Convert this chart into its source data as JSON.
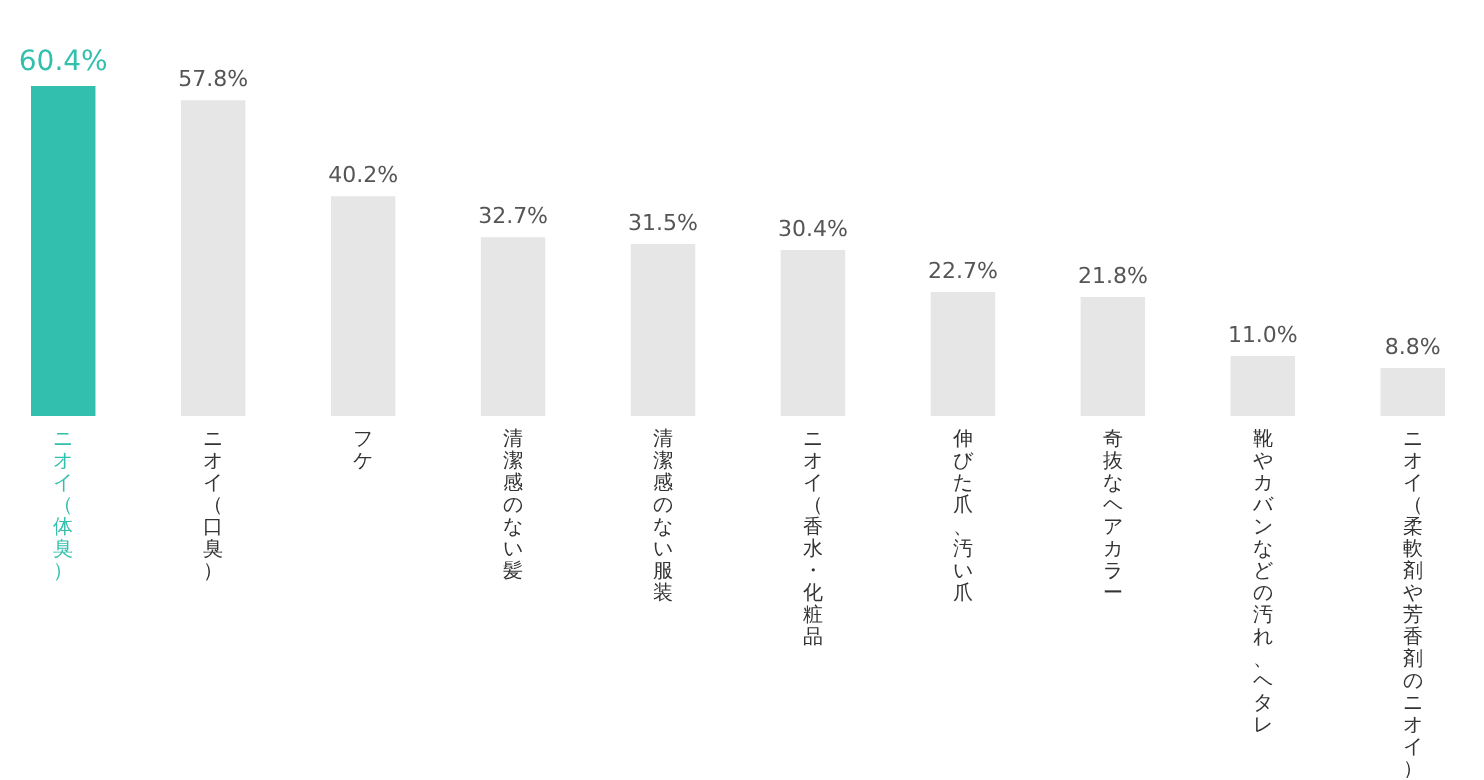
{
  "chart_data": {
    "type": "bar",
    "categories": [
      "ニオイ（体臭）",
      "ニオイ（口臭）",
      "フケ",
      "清潔感のない髪",
      "清潔感のない服装",
      "ニオイ（香水・化粧品",
      "伸びた爪、汚い爪",
      "奇抜なヘアカラー",
      "靴やカバンなどの汚れ、ヘタレ",
      "ニオイ（柔軟剤や芳香剤のニオイ）"
    ],
    "values": [
      60.4,
      57.8,
      40.2,
      32.7,
      31.5,
      30.4,
      22.7,
      21.8,
      11.0,
      8.8
    ],
    "value_labels": [
      "60.4%",
      "57.8%",
      "40.2%",
      "32.7%",
      "31.5%",
      "30.4%",
      "22.7%",
      "21.8%",
      "11.0%",
      "8.8%"
    ],
    "colors": [
      "#33bfae",
      "#e6e6e6",
      "#e6e6e6",
      "#e6e6e6",
      "#e6e6e6",
      "#e6e6e6",
      "#e6e6e6",
      "#e6e6e6",
      "#e6e6e6",
      "#e6e6e6"
    ]
  }
}
